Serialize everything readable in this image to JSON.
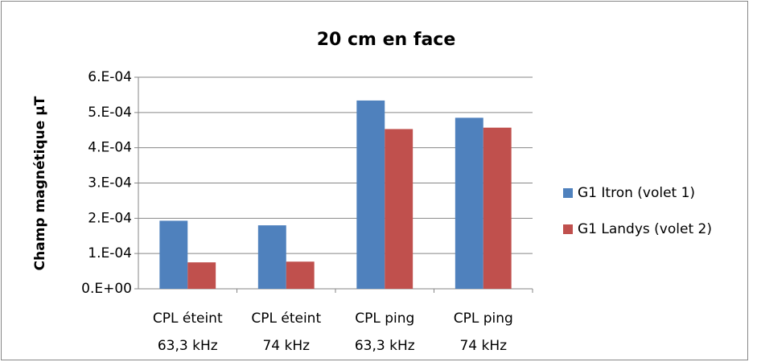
{
  "chart_data": {
    "type": "bar",
    "title": "20 cm en face",
    "y_label": "Champ magnétique µT",
    "categories": [
      [
        "CPL éteint",
        "63,3 kHz"
      ],
      [
        "CPL éteint",
        "74 kHz"
      ],
      [
        "CPL ping",
        "63,3 kHz"
      ],
      [
        "CPL ping",
        "74 kHz"
      ]
    ],
    "series": [
      {
        "name": "G1 Itron (volet 1)",
        "color": "#4f81bd",
        "values": [
          0.000193,
          0.00018,
          0.000534,
          0.000485
        ]
      },
      {
        "name": "G1 Landys (volet 2)",
        "color": "#c0504d",
        "values": [
          7.5e-05,
          7.7e-05,
          0.000453,
          0.000457
        ]
      }
    ],
    "ylim": [
      0,
      0.0006
    ],
    "yticks": [
      {
        "value": 0,
        "label": "0.E+00"
      },
      {
        "value": 0.0001,
        "label": "1.E-04"
      },
      {
        "value": 0.0002,
        "label": "2.E-04"
      },
      {
        "value": 0.0003,
        "label": "3.E-04"
      },
      {
        "value": 0.0004,
        "label": "4.E-04"
      },
      {
        "value": 0.0005,
        "label": "5.E-04"
      },
      {
        "value": 0.0006,
        "label": "6.E-04"
      }
    ],
    "grid": true,
    "legend": "right"
  }
}
